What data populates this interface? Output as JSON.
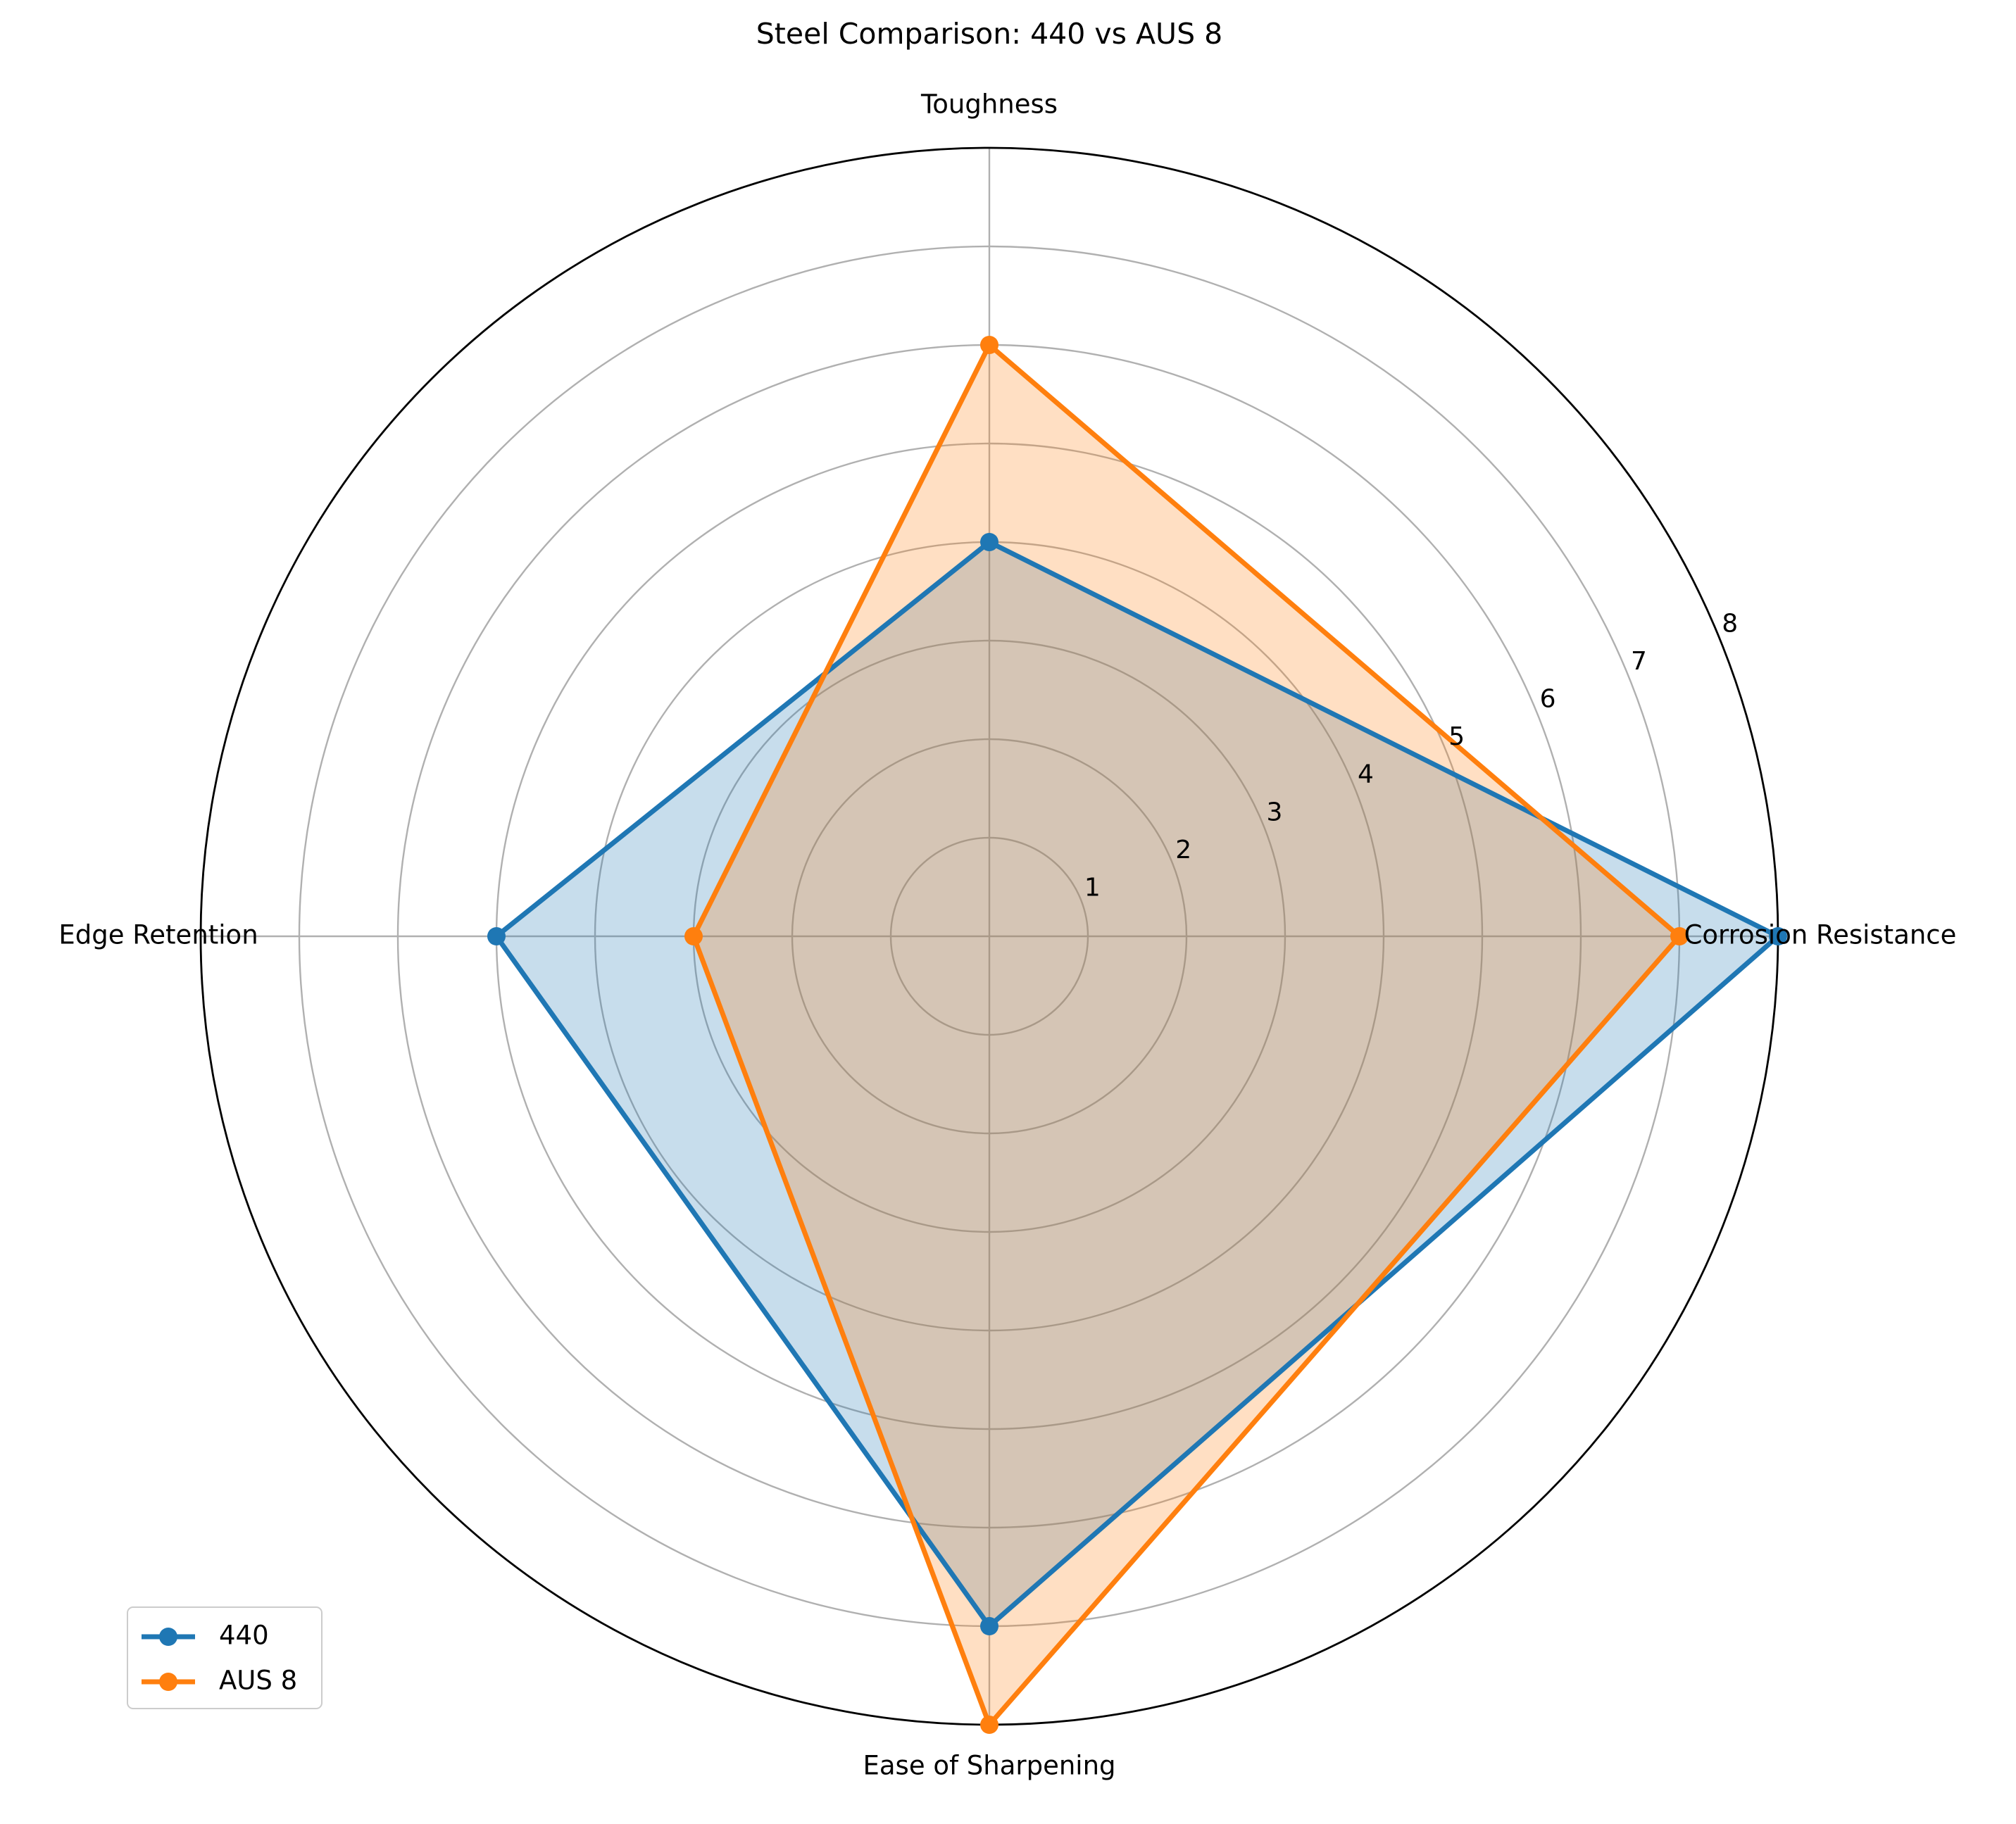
{
  "chart_data": {
    "type": "radar",
    "title": "Steel Comparison: 440 vs AUS 8",
    "categories": [
      "Corrosion Resistance",
      "Toughness",
      "Edge Retention",
      "Ease of Sharpening"
    ],
    "radial_ticks": [
      1,
      2,
      3,
      4,
      5,
      6,
      7,
      8
    ],
    "rlim": [
      0,
      8
    ],
    "grid": true,
    "legend_position": "lower-left",
    "series": [
      {
        "name": "440",
        "values": [
          8,
          4,
          5,
          7
        ],
        "color": "#1f77b4"
      },
      {
        "name": "AUS 8",
        "values": [
          7,
          6,
          3,
          8
        ],
        "color": "#ff7f0e"
      }
    ]
  }
}
